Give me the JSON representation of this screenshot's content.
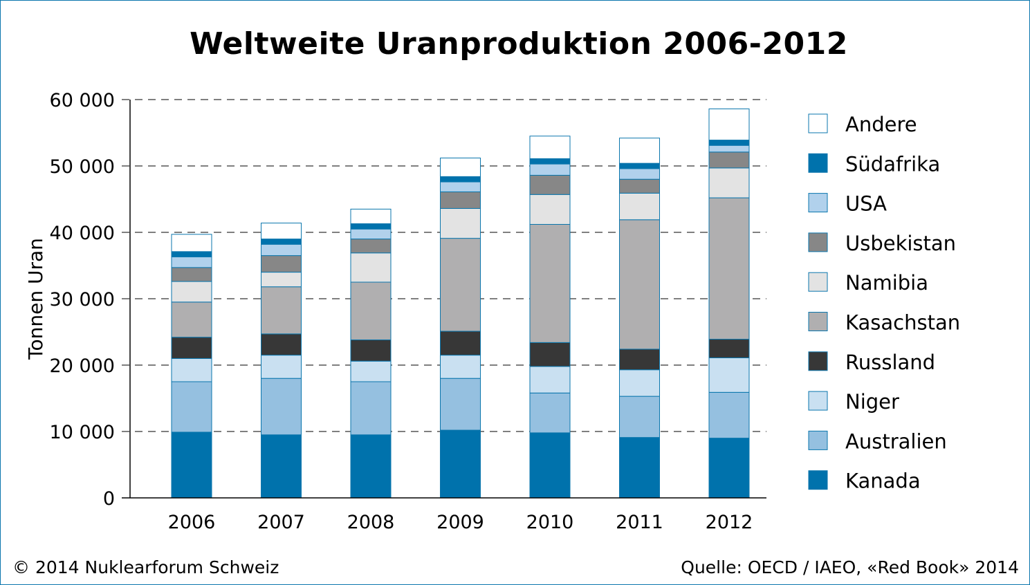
{
  "chart_data": {
    "type": "bar",
    "stacked": true,
    "title": "Weltweite Uranproduktion 2006-2012",
    "ylabel": "Tonnen Uran",
    "xlabel": "",
    "ylim": [
      0,
      60000
    ],
    "yticks": [
      0,
      10000,
      20000,
      30000,
      40000,
      50000,
      60000
    ],
    "ytick_labels": [
      "0",
      "10 000",
      "20 000",
      "30 000",
      "40 000",
      "50 000",
      "60 000"
    ],
    "grid": "dashed horizontal",
    "legend_position": "right",
    "categories": [
      "2006",
      "2007",
      "2008",
      "2009",
      "2010",
      "2011",
      "2012"
    ],
    "series": [
      {
        "name": "Kanada",
        "color": "#0072ac",
        "values": [
          9900,
          9500,
          9500,
          10200,
          9800,
          9100,
          9000
        ]
      },
      {
        "name": "Australien",
        "color": "#95c0e0",
        "values": [
          7600,
          8500,
          8000,
          7800,
          6000,
          6200,
          6900
        ]
      },
      {
        "name": "Niger",
        "color": "#c9e0f1",
        "values": [
          3500,
          3500,
          3100,
          3500,
          4000,
          4000,
          5200
        ]
      },
      {
        "name": "Russland",
        "color": "#373737",
        "values": [
          3200,
          3200,
          3200,
          3600,
          3600,
          3100,
          2800
        ]
      },
      {
        "name": "Kasachstan",
        "color": "#b0afb0",
        "values": [
          5300,
          7100,
          8700,
          14000,
          17800,
          19500,
          21300
        ]
      },
      {
        "name": "Namibia",
        "color": "#e3e3e3",
        "values": [
          3100,
          2200,
          4400,
          4500,
          4500,
          4000,
          4500
        ]
      },
      {
        "name": "Usbekistan",
        "color": "#878787",
        "values": [
          2100,
          2500,
          2100,
          2500,
          2900,
          2100,
          2400
        ]
      },
      {
        "name": "USA",
        "color": "#b1d1ec",
        "values": [
          1600,
          1700,
          1500,
          1500,
          1700,
          1600,
          1000
        ]
      },
      {
        "name": "Südafrika",
        "color": "#0072ac",
        "values": [
          800,
          800,
          800,
          800,
          800,
          800,
          800
        ]
      },
      {
        "name": "Andere",
        "color": "#ffffff",
        "values": [
          2600,
          2400,
          2200,
          2800,
          3400,
          3800,
          4700
        ]
      }
    ]
  },
  "footer": {
    "copyright": "© 2014 Nuklearforum Schweiz",
    "source": "Quelle: OECD / IAEO, «Red Book» 2014"
  }
}
